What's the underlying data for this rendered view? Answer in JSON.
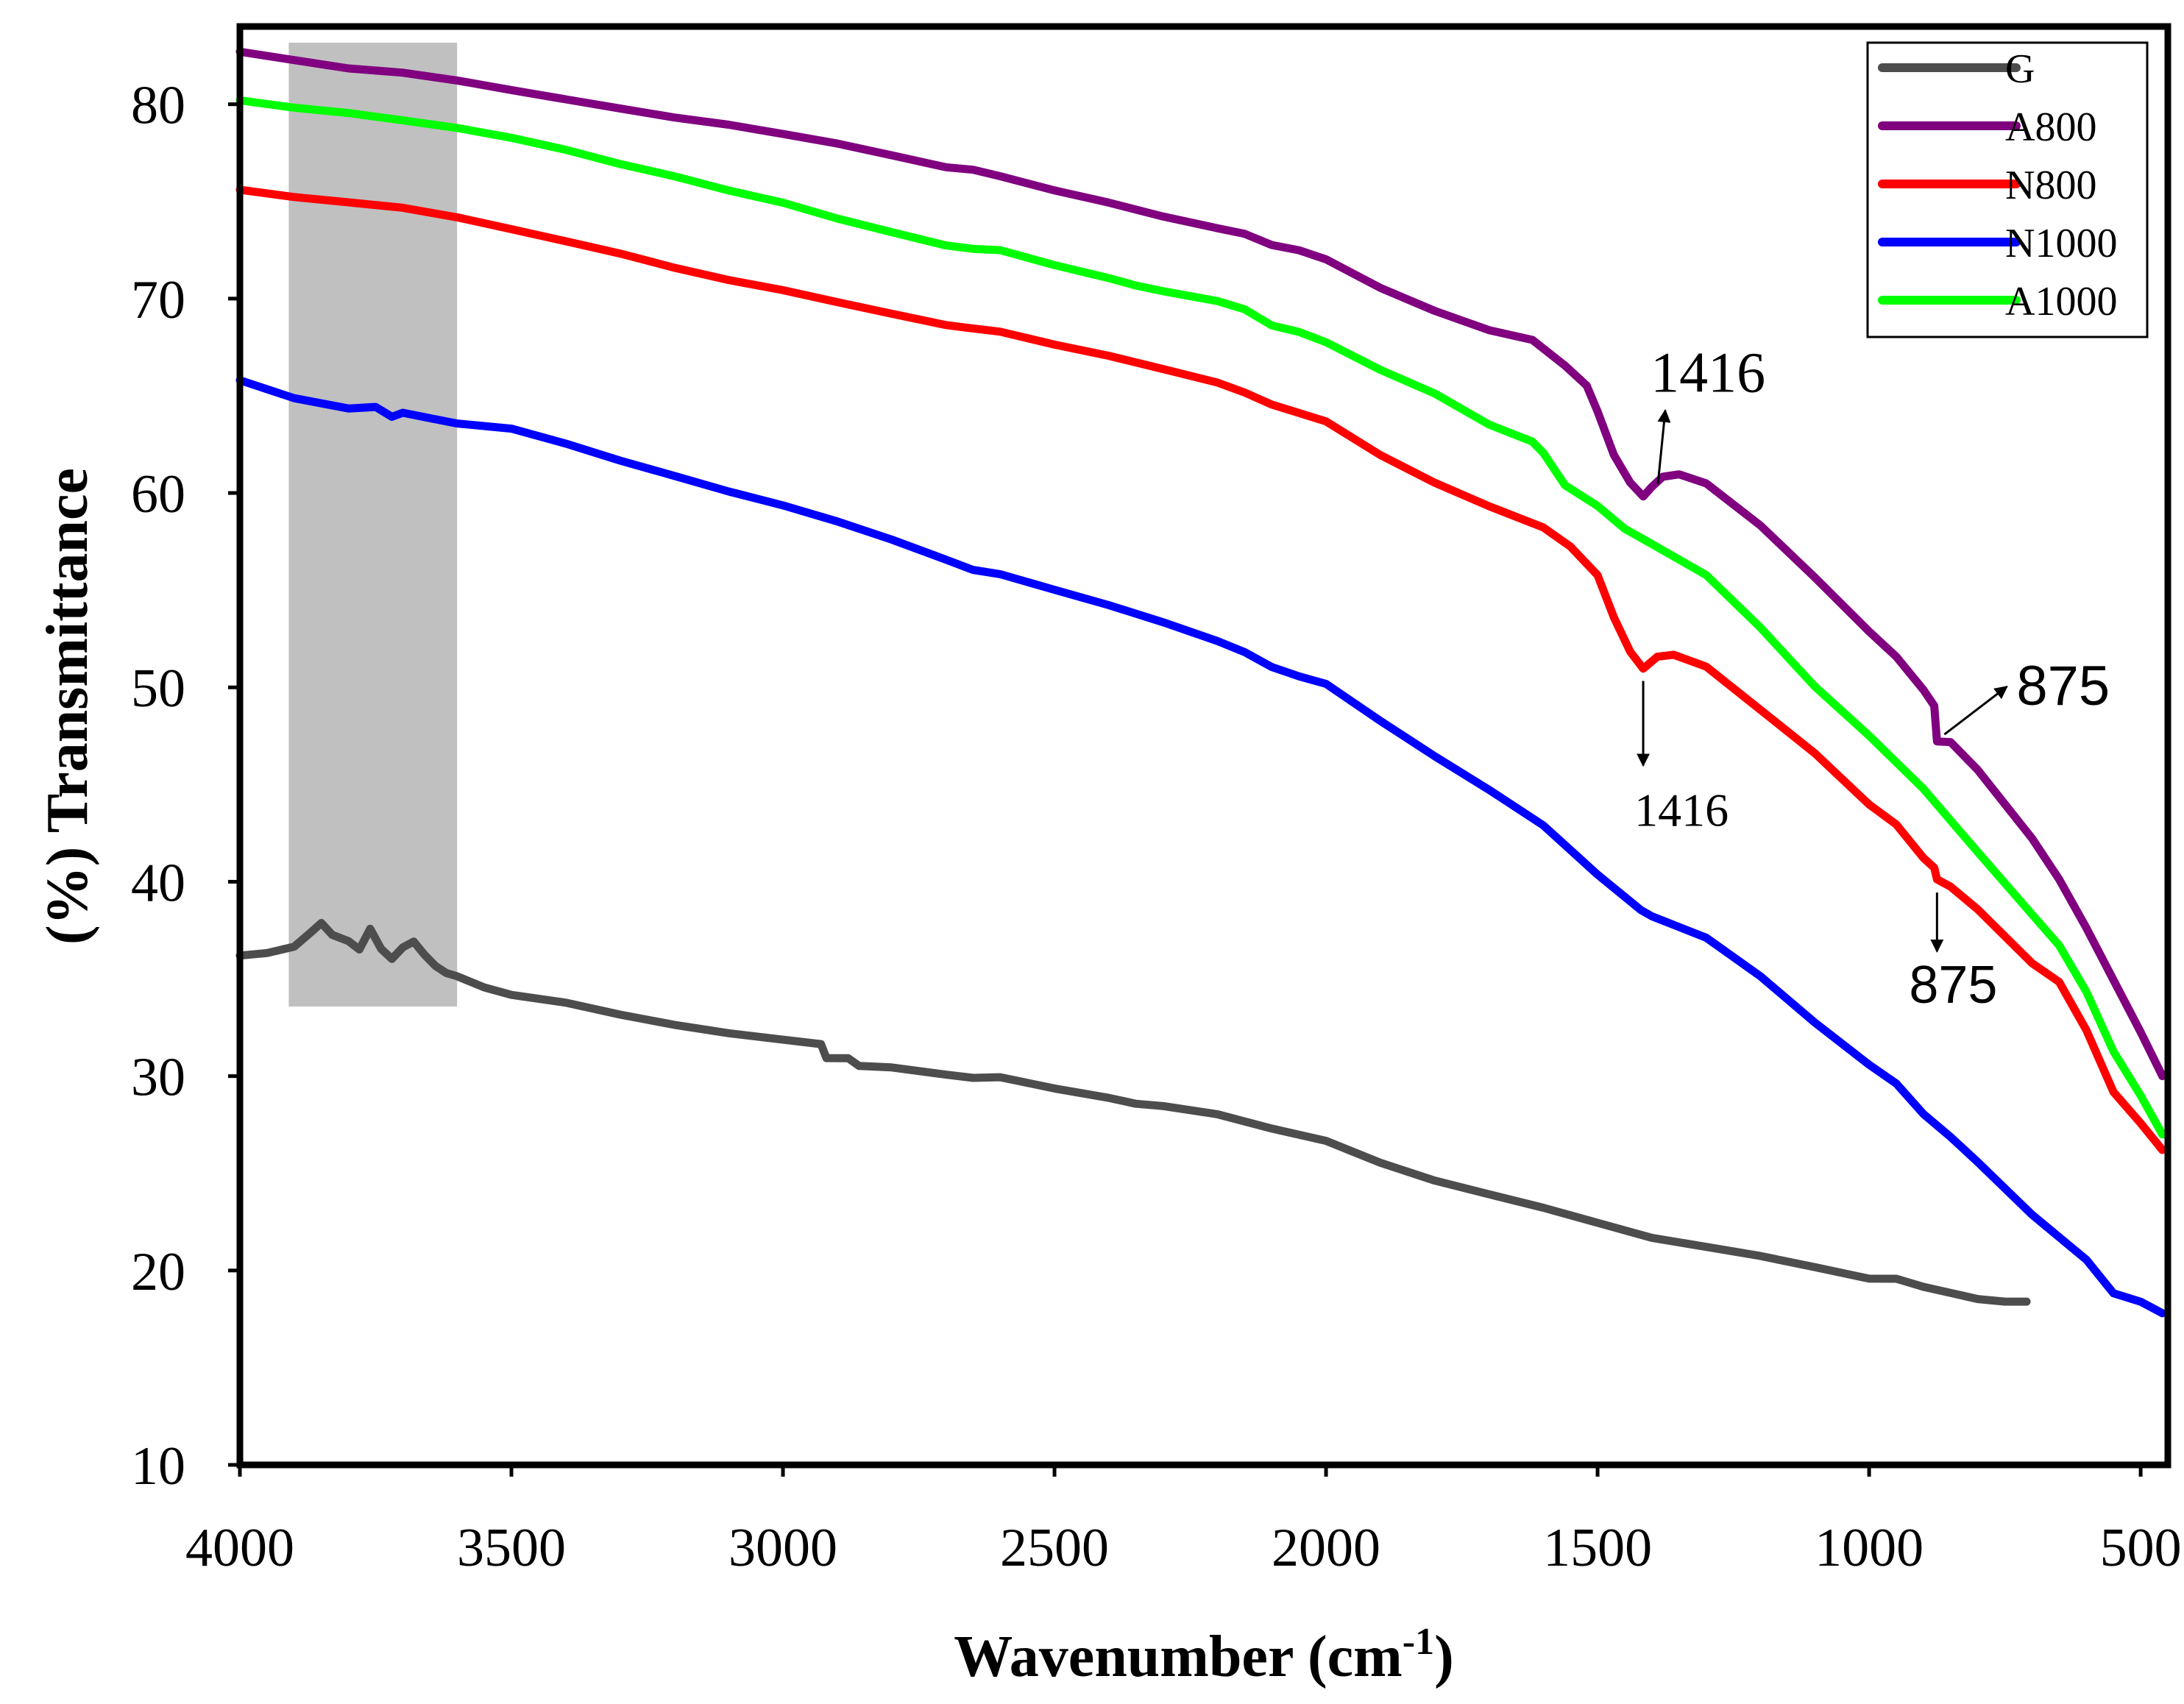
{
  "chart_data": {
    "type": "line",
    "title": "",
    "xlabel": "Wavenumber (cm",
    "xlabel_sup": "-1",
    "xlabel_close": ")",
    "ylabel": "(%) Transmittance",
    "xlim": [
      4000,
      450
    ],
    "ylim": [
      10,
      84
    ],
    "x_ticks": [
      4000,
      3500,
      3000,
      2500,
      2000,
      1500,
      1000,
      500
    ],
    "y_ticks": [
      10,
      20,
      30,
      40,
      50,
      60,
      70,
      80
    ],
    "grid": false,
    "legend_position": "top-right",
    "highlight_band": [
      3910,
      3600
    ],
    "series": [
      {
        "name": "G",
        "color": "#4d4d4d",
        "points": [
          [
            4000,
            36.2
          ],
          [
            3950,
            36.3
          ],
          [
            3900,
            36.6
          ],
          [
            3870,
            37.3
          ],
          [
            3850,
            37.8
          ],
          [
            3830,
            37.2
          ],
          [
            3800,
            36.9
          ],
          [
            3780,
            36.5
          ],
          [
            3760,
            37.6
          ],
          [
            3740,
            36.6
          ],
          [
            3720,
            36.1
          ],
          [
            3700,
            36.7
          ],
          [
            3680,
            37.0
          ],
          [
            3660,
            36.3
          ],
          [
            3640,
            35.7
          ],
          [
            3620,
            35.3
          ],
          [
            3600,
            35.1
          ],
          [
            3550,
            34.5
          ],
          [
            3500,
            34.1
          ],
          [
            3400,
            33.7
          ],
          [
            3300,
            33.1
          ],
          [
            3200,
            32.6
          ],
          [
            3100,
            32.2
          ],
          [
            3000,
            31.9
          ],
          [
            2930,
            31.7
          ],
          [
            2920,
            31.0
          ],
          [
            2880,
            31.0
          ],
          [
            2860,
            30.6
          ],
          [
            2800,
            30.5
          ],
          [
            2700,
            30.1
          ],
          [
            2650,
            29.9
          ],
          [
            2600,
            29.9
          ],
          [
            2500,
            29.3
          ],
          [
            2400,
            28.8
          ],
          [
            2350,
            28.5
          ],
          [
            2300,
            28.4
          ],
          [
            2200,
            28.0
          ],
          [
            2100,
            27.3
          ],
          [
            2000,
            26.7
          ],
          [
            1900,
            25.6
          ],
          [
            1800,
            24.7
          ],
          [
            1700,
            24.0
          ],
          [
            1600,
            23.3
          ],
          [
            1500,
            22.5
          ],
          [
            1400,
            21.7
          ],
          [
            1300,
            21.2
          ],
          [
            1200,
            20.7
          ],
          [
            1100,
            20.1
          ],
          [
            1000,
            19.5
          ],
          [
            950,
            19.5
          ],
          [
            900,
            19.1
          ],
          [
            800,
            18.5
          ],
          [
            750,
            18.4
          ],
          [
            710,
            18.4
          ]
        ]
      },
      {
        "name": "A800",
        "color": "#800080",
        "points": [
          [
            4000,
            82.7
          ],
          [
            3900,
            82.3
          ],
          [
            3800,
            81.9
          ],
          [
            3700,
            81.7
          ],
          [
            3600,
            81.3
          ],
          [
            3500,
            80.8
          ],
          [
            3400,
            80.3
          ],
          [
            3300,
            79.8
          ],
          [
            3200,
            79.3
          ],
          [
            3100,
            78.9
          ],
          [
            3000,
            78.4
          ],
          [
            2900,
            77.9
          ],
          [
            2800,
            77.3
          ],
          [
            2700,
            76.7
          ],
          [
            2650,
            76.6
          ],
          [
            2600,
            76.3
          ],
          [
            2500,
            75.6
          ],
          [
            2400,
            75.0
          ],
          [
            2300,
            74.3
          ],
          [
            2200,
            73.7
          ],
          [
            2150,
            73.4
          ],
          [
            2100,
            72.8
          ],
          [
            2050,
            72.5
          ],
          [
            2000,
            72.0
          ],
          [
            1900,
            70.5
          ],
          [
            1800,
            69.3
          ],
          [
            1700,
            68.3
          ],
          [
            1620,
            67.8
          ],
          [
            1560,
            66.5
          ],
          [
            1520,
            65.5
          ],
          [
            1500,
            64.2
          ],
          [
            1470,
            62.0
          ],
          [
            1440,
            60.6
          ],
          [
            1416,
            59.9
          ],
          [
            1400,
            60.4
          ],
          [
            1380,
            60.9
          ],
          [
            1350,
            61.0
          ],
          [
            1300,
            60.5
          ],
          [
            1200,
            58.3
          ],
          [
            1100,
            55.6
          ],
          [
            1000,
            52.8
          ],
          [
            950,
            51.5
          ],
          [
            900,
            49.8
          ],
          [
            880,
            49.0
          ],
          [
            875,
            47.2
          ],
          [
            850,
            47.2
          ],
          [
            800,
            45.8
          ],
          [
            700,
            42.3
          ],
          [
            650,
            40.2
          ],
          [
            600,
            37.7
          ],
          [
            550,
            35.0
          ],
          [
            500,
            32.3
          ],
          [
            460,
            30.0
          ]
        ]
      },
      {
        "name": "N800",
        "color": "#ff0000",
        "points": [
          [
            4000,
            75.6
          ],
          [
            3900,
            75.2
          ],
          [
            3800,
            74.9
          ],
          [
            3700,
            74.6
          ],
          [
            3600,
            74.1
          ],
          [
            3500,
            73.5
          ],
          [
            3400,
            72.9
          ],
          [
            3300,
            72.3
          ],
          [
            3200,
            71.6
          ],
          [
            3100,
            71.0
          ],
          [
            3000,
            70.5
          ],
          [
            2900,
            69.9
          ],
          [
            2800,
            69.3
          ],
          [
            2700,
            68.7
          ],
          [
            2650,
            68.5
          ],
          [
            2600,
            68.3
          ],
          [
            2500,
            67.6
          ],
          [
            2400,
            67.0
          ],
          [
            2300,
            66.3
          ],
          [
            2200,
            65.6
          ],
          [
            2150,
            65.1
          ],
          [
            2100,
            64.5
          ],
          [
            2050,
            64.1
          ],
          [
            2000,
            63.7
          ],
          [
            1900,
            62.0
          ],
          [
            1800,
            60.6
          ],
          [
            1700,
            59.4
          ],
          [
            1600,
            58.3
          ],
          [
            1550,
            57.3
          ],
          [
            1500,
            55.8
          ],
          [
            1470,
            53.6
          ],
          [
            1440,
            51.8
          ],
          [
            1416,
            50.9
          ],
          [
            1390,
            51.5
          ],
          [
            1360,
            51.6
          ],
          [
            1300,
            51.0
          ],
          [
            1200,
            48.8
          ],
          [
            1100,
            46.6
          ],
          [
            1000,
            44.0
          ],
          [
            950,
            43.0
          ],
          [
            900,
            41.3
          ],
          [
            880,
            40.8
          ],
          [
            875,
            40.2
          ],
          [
            850,
            39.8
          ],
          [
            800,
            38.6
          ],
          [
            700,
            35.8
          ],
          [
            650,
            34.8
          ],
          [
            600,
            32.3
          ],
          [
            550,
            29.1
          ],
          [
            500,
            27.5
          ],
          [
            460,
            26.2
          ]
        ]
      },
      {
        "name": "N1000",
        "color": "#0000ff",
        "points": [
          [
            4000,
            65.8
          ],
          [
            3900,
            64.9
          ],
          [
            3800,
            64.4
          ],
          [
            3750,
            64.5
          ],
          [
            3720,
            64.0
          ],
          [
            3700,
            64.2
          ],
          [
            3650,
            63.9
          ],
          [
            3600,
            63.6
          ],
          [
            3500,
            63.3
          ],
          [
            3400,
            62.5
          ],
          [
            3300,
            61.6
          ],
          [
            3200,
            60.8
          ],
          [
            3100,
            60.0
          ],
          [
            3000,
            59.3
          ],
          [
            2900,
            58.5
          ],
          [
            2800,
            57.6
          ],
          [
            2700,
            56.6
          ],
          [
            2650,
            56.1
          ],
          [
            2600,
            55.9
          ],
          [
            2500,
            55.1
          ],
          [
            2400,
            54.3
          ],
          [
            2300,
            53.4
          ],
          [
            2200,
            52.4
          ],
          [
            2150,
            51.8
          ],
          [
            2100,
            51.0
          ],
          [
            2050,
            50.5
          ],
          [
            2000,
            50.1
          ],
          [
            1900,
            48.2
          ],
          [
            1800,
            46.4
          ],
          [
            1700,
            44.7
          ],
          [
            1600,
            42.9
          ],
          [
            1500,
            40.4
          ],
          [
            1420,
            38.6
          ],
          [
            1400,
            38.3
          ],
          [
            1300,
            37.2
          ],
          [
            1200,
            35.2
          ],
          [
            1100,
            32.8
          ],
          [
            1000,
            30.6
          ],
          [
            950,
            29.6
          ],
          [
            900,
            28.0
          ],
          [
            850,
            26.8
          ],
          [
            800,
            25.5
          ],
          [
            700,
            22.8
          ],
          [
            600,
            20.5
          ],
          [
            550,
            18.8
          ],
          [
            500,
            18.4
          ],
          [
            460,
            17.8
          ]
        ]
      },
      {
        "name": "A1000",
        "color": "#00ff00",
        "points": [
          [
            4000,
            80.2
          ],
          [
            3900,
            79.8
          ],
          [
            3800,
            79.5
          ],
          [
            3700,
            79.1
          ],
          [
            3600,
            78.7
          ],
          [
            3500,
            78.2
          ],
          [
            3400,
            77.6
          ],
          [
            3300,
            76.9
          ],
          [
            3200,
            76.3
          ],
          [
            3100,
            75.6
          ],
          [
            3000,
            75.0
          ],
          [
            2900,
            74.2
          ],
          [
            2800,
            73.5
          ],
          [
            2700,
            72.8
          ],
          [
            2650,
            72.6
          ],
          [
            2600,
            72.5
          ],
          [
            2500,
            71.7
          ],
          [
            2400,
            71.0
          ],
          [
            2350,
            70.6
          ],
          [
            2300,
            70.3
          ],
          [
            2200,
            69.8
          ],
          [
            2150,
            69.4
          ],
          [
            2100,
            68.6
          ],
          [
            2050,
            68.3
          ],
          [
            2000,
            67.8
          ],
          [
            1900,
            66.4
          ],
          [
            1800,
            65.2
          ],
          [
            1700,
            63.6
          ],
          [
            1620,
            62.7
          ],
          [
            1600,
            62.1
          ],
          [
            1560,
            60.4
          ],
          [
            1500,
            59.3
          ],
          [
            1450,
            58.1
          ],
          [
            1400,
            57.3
          ],
          [
            1300,
            55.7
          ],
          [
            1200,
            53.0
          ],
          [
            1100,
            50.0
          ],
          [
            1000,
            47.5
          ],
          [
            900,
            44.8
          ],
          [
            850,
            43.2
          ],
          [
            800,
            41.6
          ],
          [
            700,
            38.4
          ],
          [
            650,
            36.8
          ],
          [
            600,
            34.4
          ],
          [
            550,
            31.3
          ],
          [
            500,
            29.0
          ],
          [
            460,
            27.0
          ]
        ]
      }
    ],
    "annotations": [
      {
        "label": "1416",
        "series": "A800",
        "x": 1416
      },
      {
        "label": "1416",
        "series": "N800",
        "x": 1416
      },
      {
        "label": "875",
        "series": "A800",
        "x": 875
      },
      {
        "label": "875",
        "series": "N800",
        "x": 875
      }
    ]
  }
}
